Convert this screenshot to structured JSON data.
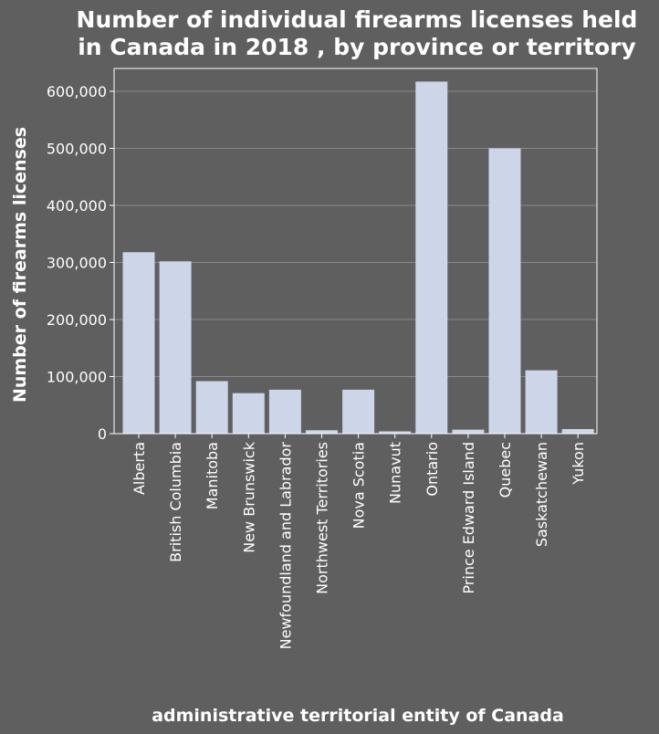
{
  "chart_data": {
    "type": "bar",
    "title_lines": [
      "Number of individual firearms licenses held",
      "in Canada in 2018 , by province or territory"
    ],
    "xlabel": "administrative territorial entity of Canada",
    "ylabel": "Number of firearms licenses",
    "categories": [
      "Alberta",
      "British Columbia",
      "Manitoba",
      "New Brunswick",
      "Newfoundland and Labrador",
      "Northwest Territories",
      "Nova Scotia",
      "Nunavut",
      "Ontario",
      "Prince Edward Island",
      "Quebec",
      "Saskatchewan",
      "Yukon"
    ],
    "values": [
      318000,
      302000,
      92000,
      71000,
      77000,
      6000,
      77000,
      4000,
      617000,
      7000,
      500000,
      111000,
      8000
    ],
    "ylim": [
      0,
      640000
    ],
    "yticks": [
      0,
      100000,
      200000,
      300000,
      400000,
      500000,
      600000
    ],
    "ytick_labels": [
      "0",
      "100,000",
      "200,000",
      "300,000",
      "400,000",
      "500,000",
      "600,000"
    ],
    "grid": true,
    "colors": {
      "bar": "#ccd6e8",
      "background": "#5f5f5f",
      "grid": "#8a8a8a",
      "text": "#ffffff"
    }
  }
}
